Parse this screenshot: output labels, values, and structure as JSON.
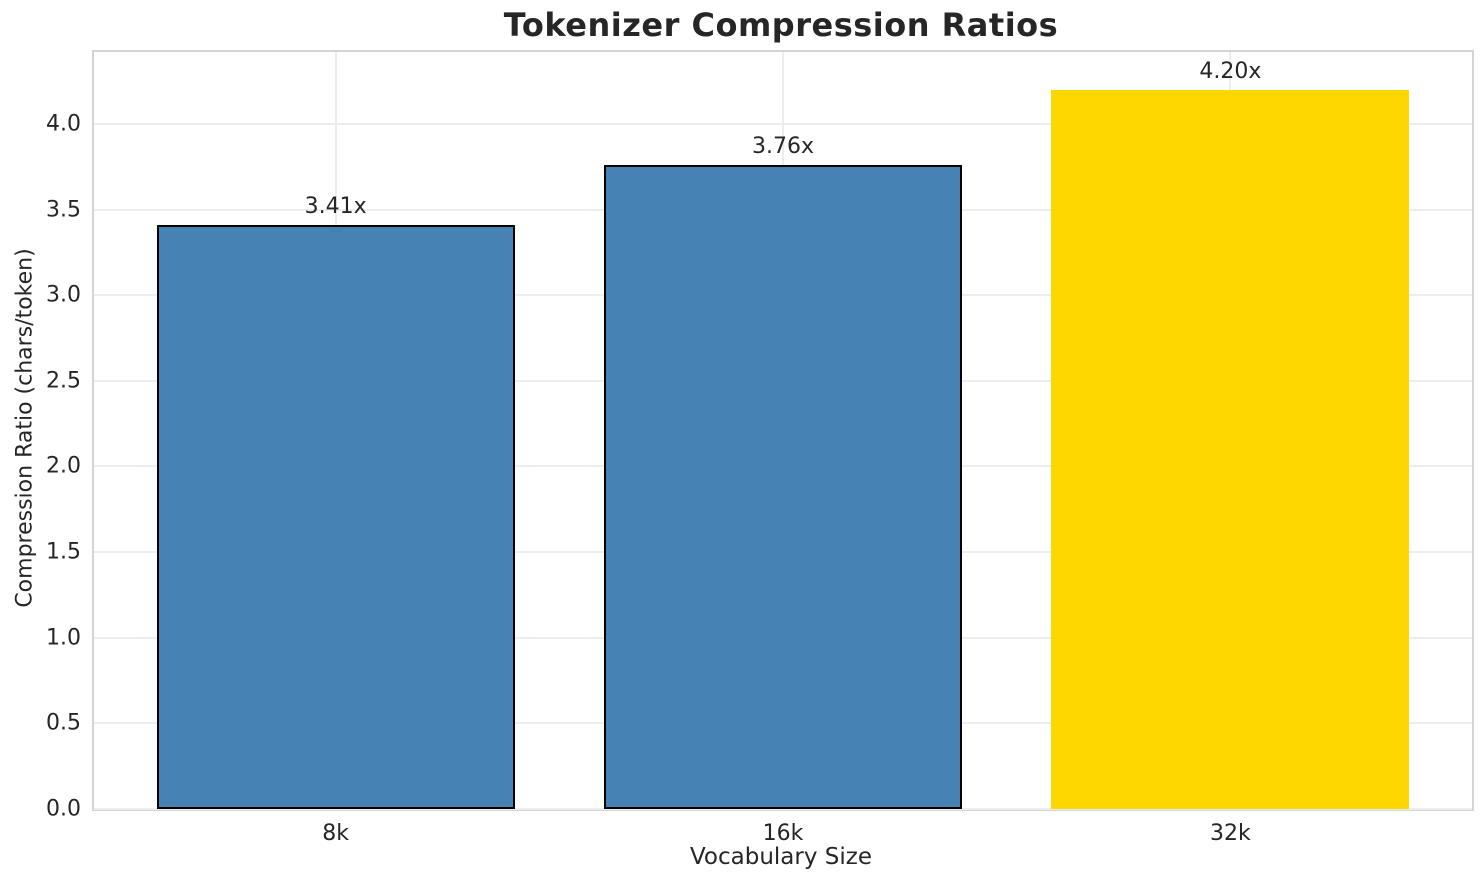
{
  "chart_data": {
    "type": "bar",
    "title": "Tokenizer Compression Ratios",
    "xlabel": "Vocabulary Size",
    "ylabel": "Compression Ratio (chars/token)",
    "categories": [
      "8k",
      "16k",
      "32k"
    ],
    "values": [
      3.41,
      3.76,
      4.2
    ],
    "bar_labels": [
      "3.41x",
      "3.76x",
      "4.20x"
    ],
    "bar_colors": [
      "#4682B4",
      "#4682B4",
      "#FFD700"
    ],
    "bar_edge_colors": [
      "#000000",
      "#000000",
      "none"
    ],
    "ylim": [
      0,
      4.42
    ],
    "yticks": [
      0.0,
      0.5,
      1.0,
      1.5,
      2.0,
      2.5,
      3.0,
      3.5,
      4.0
    ],
    "ytick_labels": [
      "0.0",
      "0.5",
      "1.0",
      "1.5",
      "2.0",
      "2.5",
      "3.0",
      "3.5",
      "4.0"
    ],
    "grid": true,
    "grid_axis": "both",
    "legend_position": "none"
  },
  "colors": {
    "background": "#ffffff",
    "grid": "#ededed",
    "spine": "#d4d4d4",
    "text": "#262626",
    "bar_default": "#4682B4",
    "bar_highlight": "#FFD700",
    "bar_edge": "#000000"
  }
}
